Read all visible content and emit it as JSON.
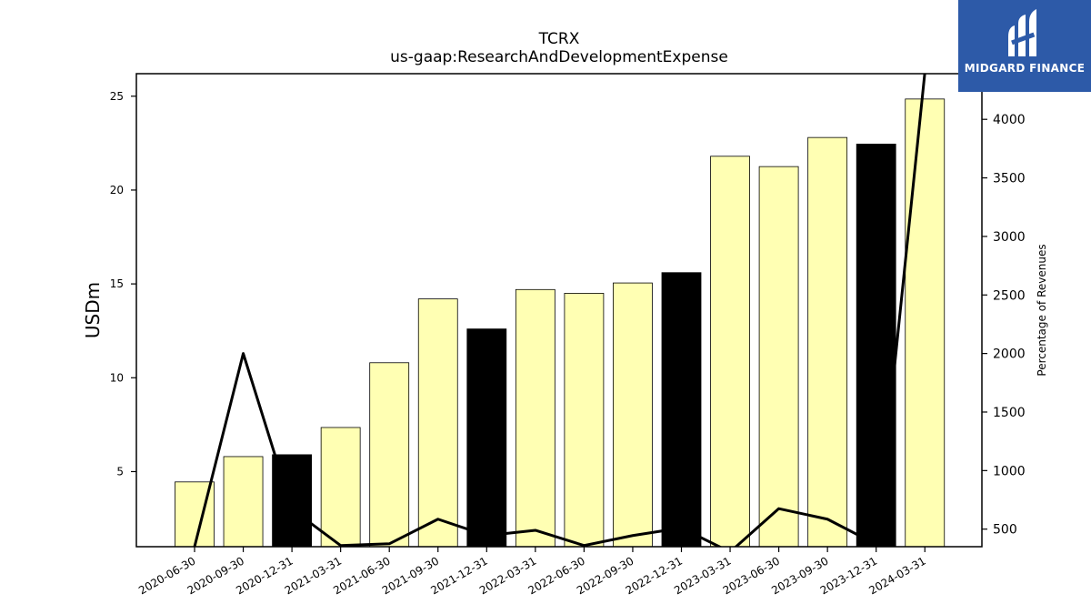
{
  "chart_data": {
    "type": "bar",
    "title": "TCRX",
    "subtitle": "us-gaap:ResearchAndDevelopmentExpense",
    "ylabel": "USDm",
    "y2label": "Percentage of Revenues",
    "categories": [
      "2020-06-30",
      "2020-09-30",
      "2020-12-31",
      "2021-03-31",
      "2021-06-30",
      "2021-09-30",
      "2021-12-31",
      "2022-03-31",
      "2022-06-30",
      "2022-09-30",
      "2022-12-31",
      "2023-03-31",
      "2023-06-30",
      "2023-09-30",
      "2023-12-31",
      "2024-03-31"
    ],
    "series": [
      {
        "type": "bar",
        "values": [
          4.45,
          5.8,
          5.9,
          7.35,
          10.8,
          14.2,
          12.6,
          14.7,
          14.5,
          15.05,
          15.6,
          21.8,
          21.25,
          22.8,
          22.45,
          24.85
        ],
        "colors": [
          "#ffffb3",
          "#ffffb3",
          "#000000",
          "#ffffb3",
          "#ffffb3",
          "#ffffb3",
          "#000000",
          "#ffffb3",
          "#ffffb3",
          "#ffffb3",
          "#000000",
          "#ffffb3",
          "#ffffb3",
          "#ffffb3",
          "#000000",
          "#ffffb3"
        ]
      },
      {
        "type": "line",
        "axis": "right",
        "color": "#000000",
        "values": [
          350,
          2000,
          670,
          360,
          375,
          585,
          445,
          490,
          360,
          445,
          510,
          305,
          675,
          585,
          370,
          4400
        ]
      }
    ],
    "ylim": [
      1,
      26.2
    ],
    "y2lim": [
      350,
      4390
    ],
    "yticks": [
      5,
      10,
      15,
      20,
      25
    ],
    "y2ticks": [
      500,
      1000,
      1500,
      2000,
      2500,
      3000,
      3500,
      4000
    ],
    "grid": false,
    "legend": false
  },
  "logo": {
    "text": "MIDGARD FINANCE"
  }
}
